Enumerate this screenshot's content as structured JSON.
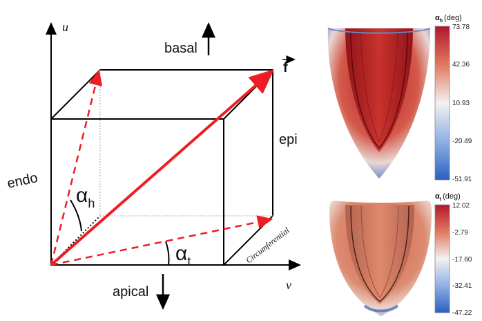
{
  "diagram": {
    "axis_u": "u",
    "axis_v": "v",
    "fiber_vector": "f",
    "basal": "basal",
    "apical": "apical",
    "endo": "endo",
    "epi": "epi",
    "circumferential": "Circumferential",
    "alpha_h": {
      "base": "α",
      "sub": "h"
    },
    "alpha_t": {
      "base": "α",
      "sub": "t"
    }
  },
  "heart_maps": [
    {
      "title_symbol": "α",
      "title_sub": "h",
      "title_unit": "(deg)",
      "ticks": [
        "73.78",
        "42.36",
        "10.93",
        "-20.49",
        "-51.91"
      ],
      "colors": {
        "top": "#b2172b",
        "mid": "#f2f2f2",
        "bottom": "#2c5fc2"
      }
    },
    {
      "title_symbol": "α",
      "title_sub": "t",
      "title_unit": "(deg)",
      "ticks": [
        "12.02",
        "-2.79",
        "-17.60",
        "-32.41",
        "-47.22"
      ],
      "colors": {
        "top": "#b2172b",
        "mid": "#f2f2f2",
        "bottom": "#2c5fc2"
      }
    }
  ]
}
